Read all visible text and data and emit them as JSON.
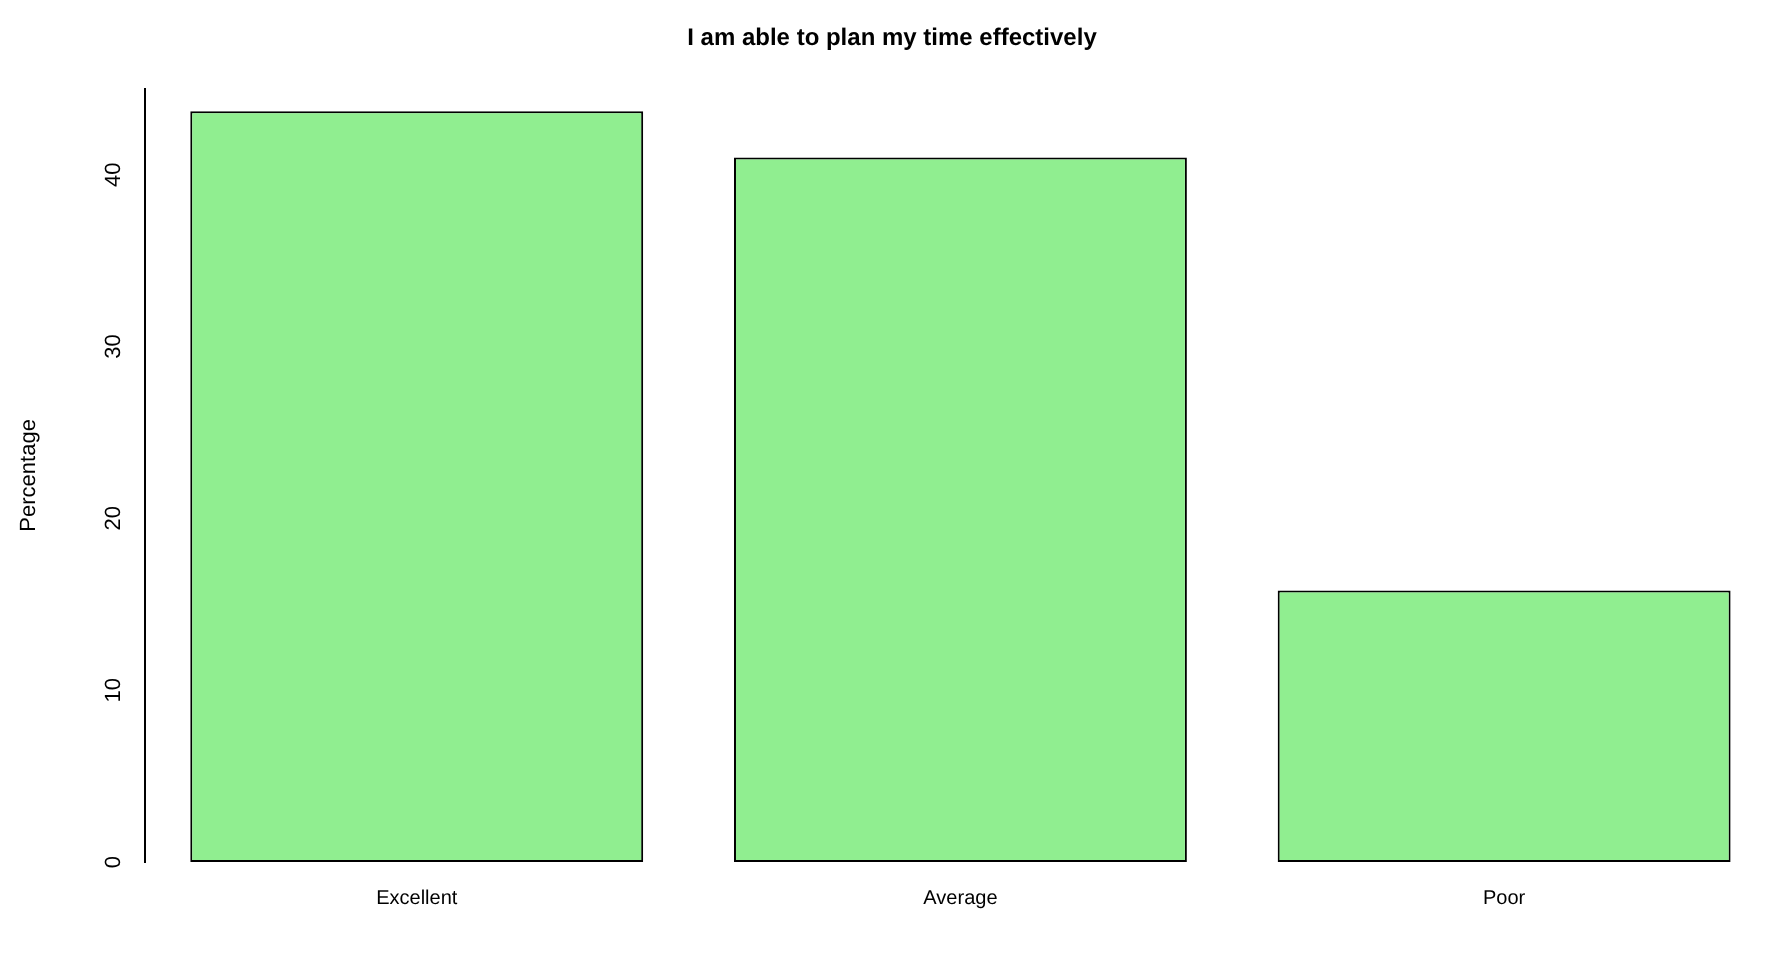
{
  "chart_data": {
    "type": "bar",
    "title": "I am able to plan my time effectively",
    "ylabel": "Percentage",
    "categories": [
      "Excellent",
      "Average",
      "Poor"
    ],
    "values": [
      43.7,
      41.0,
      15.8
    ],
    "color": "#90ee90",
    "ylim": [
      0,
      45
    ],
    "yticks": [
      0,
      10,
      20,
      30,
      40
    ],
    "grid": false,
    "legend": false
  }
}
